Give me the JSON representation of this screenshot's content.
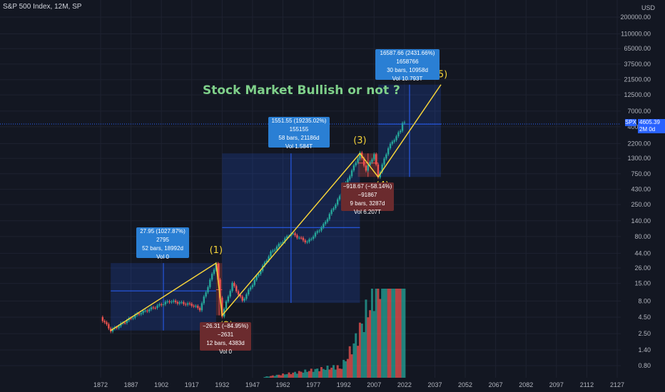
{
  "header": {
    "symbol_line": "S&P 500 Index, 12M, SP",
    "currency": "USD"
  },
  "title": "Stock Market Bullish or not ?",
  "price_badge": {
    "symbol": "SPX",
    "price": "4605.39",
    "countdown": "2M 0d"
  },
  "colors": {
    "background": "#131722",
    "up": "#26a69a",
    "down": "#ef5350",
    "wave": "#f5d33a",
    "box_up": "#2a7fd4",
    "box_down": "#6b2b2e",
    "title": "#7fd08a"
  },
  "chart_data": {
    "type": "candlestick",
    "y_scale": "log",
    "y_ticks": [
      "200000.00",
      "110000.00",
      "65000.00",
      "37500.00",
      "21500.00",
      "12500.00",
      "7000.00",
      "4000.00",
      "2200.00",
      "1300.00",
      "750.00",
      "430.00",
      "250.00",
      "140.00",
      "80.00",
      "44.00",
      "26.00",
      "15.00",
      "8.00",
      "4.50",
      "2.50",
      "1.40",
      "0.80"
    ],
    "x_ticks": [
      "1872",
      "1887",
      "1902",
      "1917",
      "1932",
      "1947",
      "1962",
      "1977",
      "1992",
      "2007",
      "2022",
      "2037",
      "2052",
      "2067",
      "2082",
      "2097",
      "2112",
      "2127"
    ],
    "last_price": 4605.39,
    "elliott_waves": [
      {
        "label": "",
        "year": 1877,
        "value": 2.8
      },
      {
        "label": "(1)",
        "year": 1929,
        "value": 31
      },
      {
        "label": "(2)",
        "year": 1932,
        "value": 4.8
      },
      {
        "label": "(3)",
        "year": 2000,
        "value": 1550
      },
      {
        "label": "(4)",
        "year": 2009,
        "value": 670
      },
      {
        "label": "(5)",
        "year": 2040,
        "value": 18000
      }
    ],
    "measurements": [
      {
        "direction": "up",
        "lines": [
          "27.95 (1027.87%) 2795",
          "52 bars, 18992d",
          "Vol 0"
        ]
      },
      {
        "direction": "down",
        "lines": [
          "−26.31 (−84.95%) −2631",
          "12 bars, 4383d",
          "Vol 0"
        ]
      },
      {
        "direction": "up",
        "lines": [
          "1551.55 (19235.02%) 155155",
          "58 bars, 21186d",
          "Vol 1.584T"
        ]
      },
      {
        "direction": "down",
        "lines": [
          "−918.67 (−58.14%) −91867",
          "9 bars, 3287d",
          "Vol 6.207T"
        ]
      },
      {
        "direction": "up",
        "lines": [
          "16587.66 (2431.66%) 1658766",
          "30 bars, 10958d",
          "Vol 10.793T"
        ]
      }
    ]
  }
}
